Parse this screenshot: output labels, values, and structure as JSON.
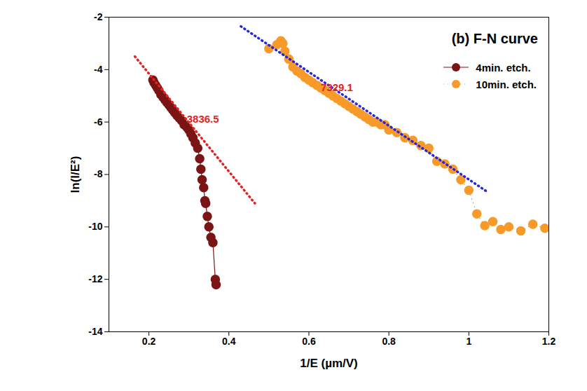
{
  "chart_data": {
    "type": "scatter",
    "title": "(b) F-N curve",
    "x_label": "1/E (µm/V)",
    "y_label": "ln(I/E²)",
    "xlim": [
      0.1,
      1.2
    ],
    "ylim": [
      -14,
      -2
    ],
    "xticks": [
      0.2,
      0.4,
      0.6,
      0.8,
      1.0,
      1.2
    ],
    "yticks": [
      -14,
      -12,
      -10,
      -8,
      -6,
      -4,
      -2
    ],
    "legend": "upper right",
    "series": [
      {
        "name": "4min. etch.",
        "color": "#7b1414",
        "marker": "circle",
        "line_style": "solid",
        "type": "line",
        "x": [
          0.21,
          0.213,
          0.217,
          0.221,
          0.225,
          0.23,
          0.235,
          0.24,
          0.245,
          0.25,
          0.255,
          0.26,
          0.265,
          0.27,
          0.276,
          0.282,
          0.288,
          0.295,
          0.3,
          0.305,
          0.31,
          0.316,
          0.322,
          0.327,
          0.33,
          0.333,
          0.337,
          0.34,
          0.342,
          0.346,
          0.35,
          0.355,
          0.36,
          0.366,
          0.368
        ],
        "values": [
          -4.4,
          -4.5,
          -4.6,
          -4.7,
          -4.8,
          -4.95,
          -5.05,
          -5.15,
          -5.25,
          -5.35,
          -5.45,
          -5.55,
          -5.65,
          -5.75,
          -5.85,
          -5.95,
          -6.1,
          -6.2,
          -6.3,
          -6.45,
          -6.6,
          -6.8,
          -7.0,
          -7.4,
          -7.8,
          -8.2,
          -8.5,
          -9.0,
          -9.1,
          -9.6,
          -10.0,
          -10.4,
          -10.6,
          -12.0,
          -12.2
        ]
      },
      {
        "name": "10min. etch.",
        "color": "#f79a2a",
        "marker": "circle",
        "line_style": "dotted",
        "type": "line",
        "x": [
          0.5,
          0.52,
          0.53,
          0.535,
          0.54,
          0.55,
          0.56,
          0.57,
          0.58,
          0.59,
          0.6,
          0.61,
          0.62,
          0.63,
          0.64,
          0.65,
          0.66,
          0.67,
          0.68,
          0.69,
          0.7,
          0.71,
          0.72,
          0.73,
          0.74,
          0.75,
          0.76,
          0.77,
          0.78,
          0.79,
          0.8,
          0.82,
          0.84,
          0.86,
          0.88,
          0.9,
          0.92,
          0.94,
          0.96,
          0.98,
          1.0,
          1.02,
          1.04,
          1.06,
          1.08,
          1.1,
          1.13,
          1.16,
          1.19
        ],
        "values": [
          -3.2,
          -3.05,
          -2.9,
          -3.0,
          -3.3,
          -3.6,
          -3.9,
          -4.05,
          -4.15,
          -4.3,
          -4.4,
          -4.5,
          -4.6,
          -4.7,
          -4.8,
          -4.9,
          -5.0,
          -5.1,
          -5.2,
          -5.3,
          -5.4,
          -5.5,
          -5.6,
          -5.7,
          -5.8,
          -5.9,
          -6.0,
          -6.0,
          -6.1,
          -6.1,
          -6.3,
          -6.4,
          -6.6,
          -6.7,
          -6.9,
          -7.0,
          -7.5,
          -7.6,
          -7.8,
          -8.2,
          -8.6,
          -9.5,
          -9.95,
          -9.8,
          -10.1,
          -10.0,
          -10.15,
          -9.9,
          -10.05
        ]
      },
      {
        "color": "#e52222",
        "marker": "none",
        "line_style": "dotted",
        "type": "line",
        "x": [
          0.165,
          0.465
        ],
        "values": [
          -3.5,
          -9.1
        ]
      },
      {
        "color": "#2626e0",
        "marker": "none",
        "line_style": "dotted",
        "type": "line",
        "x": [
          0.43,
          1.045
        ],
        "values": [
          -2.35,
          -8.65
        ]
      }
    ],
    "annotations": [
      {
        "text": "3836.5",
        "x": 0.335,
        "y": -5.9,
        "color": "#e52222"
      },
      {
        "text": "7329.1",
        "x": 0.67,
        "y": -4.7,
        "color": "#e52222"
      }
    ]
  }
}
